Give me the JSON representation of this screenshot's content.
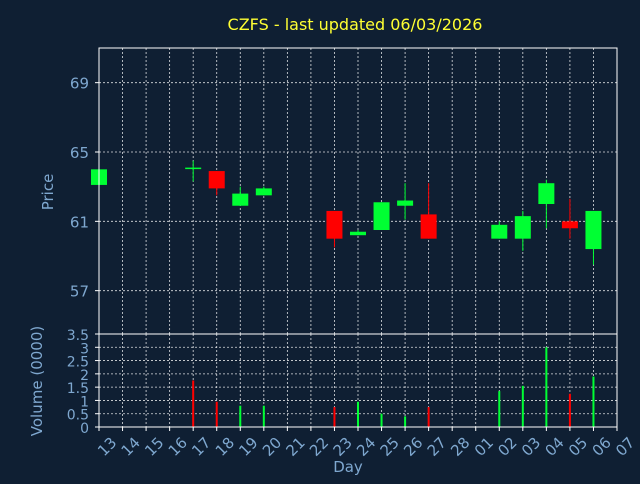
{
  "chart_data": [
    {
      "type": "candlestick",
      "title": "CZFS - last updated 06/03/2026",
      "ylabel": "Price",
      "xlabel": "",
      "ylim": [
        54.5,
        71
      ],
      "yticks": [
        57,
        61,
        65,
        69
      ],
      "grid": true,
      "colors": {
        "up": "#00ff33",
        "down": "#ff0000",
        "axis_text": "#7fa8d0",
        "title": "#ffff33",
        "background": "#0f1f33"
      },
      "x": [
        "13",
        "14",
        "15",
        "16",
        "17",
        "18",
        "19",
        "20",
        "21",
        "22",
        "23",
        "24",
        "25",
        "26",
        "27",
        "28",
        "01",
        "02",
        "03",
        "04",
        "05",
        "06",
        "07"
      ],
      "candles": [
        {
          "day": "13",
          "open": 63.1,
          "high": 64.0,
          "low": 63.1,
          "close": 64.0
        },
        {
          "day": "17",
          "open": 64.1,
          "high": 64.5,
          "low": 63.3,
          "close": 64.1
        },
        {
          "day": "18",
          "open": 63.9,
          "high": 63.9,
          "low": 62.5,
          "close": 62.9
        },
        {
          "day": "19",
          "open": 61.9,
          "high": 63.0,
          "low": 61.9,
          "close": 62.6
        },
        {
          "day": "20",
          "open": 62.5,
          "high": 63.0,
          "low": 62.5,
          "close": 62.9
        },
        {
          "day": "23",
          "open": 61.6,
          "high": 61.6,
          "low": 59.5,
          "close": 60.0
        },
        {
          "day": "24",
          "open": 60.2,
          "high": 60.5,
          "low": 60.2,
          "close": 60.4
        },
        {
          "day": "25",
          "open": 60.5,
          "high": 62.1,
          "low": 60.5,
          "close": 62.1
        },
        {
          "day": "26",
          "open": 61.9,
          "high": 63.2,
          "low": 61.1,
          "close": 62.2
        },
        {
          "day": "27",
          "open": 61.4,
          "high": 63.2,
          "low": 60.0,
          "close": 60.0
        },
        {
          "day": "02",
          "open": 60.0,
          "high": 61.0,
          "low": 60.0,
          "close": 60.8
        },
        {
          "day": "03",
          "open": 60.0,
          "high": 61.6,
          "low": 59.3,
          "close": 61.3
        },
        {
          "day": "04",
          "open": 62.0,
          "high": 63.4,
          "low": 60.6,
          "close": 63.2
        },
        {
          "day": "05",
          "open": 61.0,
          "high": 62.3,
          "low": 60.0,
          "close": 60.6
        },
        {
          "day": "06",
          "open": 59.4,
          "high": 61.6,
          "low": 58.5,
          "close": 61.6
        }
      ]
    },
    {
      "type": "bar",
      "title": "",
      "xlabel": "Day",
      "ylabel": "Volume (0000)",
      "ylim": [
        0,
        3.5
      ],
      "yticks": [
        0,
        0.5,
        1,
        1.5,
        2,
        2.5,
        3,
        3.5
      ],
      "grid": true,
      "x": [
        "13",
        "14",
        "15",
        "16",
        "17",
        "18",
        "19",
        "20",
        "21",
        "22",
        "23",
        "24",
        "25",
        "26",
        "27",
        "28",
        "01",
        "02",
        "03",
        "04",
        "05",
        "06",
        "07"
      ],
      "bars": [
        {
          "day": "17",
          "value": 1.75,
          "dir": "down"
        },
        {
          "day": "18",
          "value": 0.95,
          "dir": "down"
        },
        {
          "day": "19",
          "value": 0.8,
          "dir": "up"
        },
        {
          "day": "20",
          "value": 0.8,
          "dir": "up"
        },
        {
          "day": "23",
          "value": 0.75,
          "dir": "down"
        },
        {
          "day": "24",
          "value": 0.95,
          "dir": "up"
        },
        {
          "day": "25",
          "value": 0.5,
          "dir": "up"
        },
        {
          "day": "26",
          "value": 0.4,
          "dir": "up"
        },
        {
          "day": "27",
          "value": 0.75,
          "dir": "down"
        },
        {
          "day": "02",
          "value": 1.35,
          "dir": "up"
        },
        {
          "day": "03",
          "value": 1.55,
          "dir": "up"
        },
        {
          "day": "04",
          "value": 3.0,
          "dir": "up"
        },
        {
          "day": "05",
          "value": 1.25,
          "dir": "down"
        },
        {
          "day": "06",
          "value": 1.9,
          "dir": "up"
        }
      ]
    }
  ]
}
